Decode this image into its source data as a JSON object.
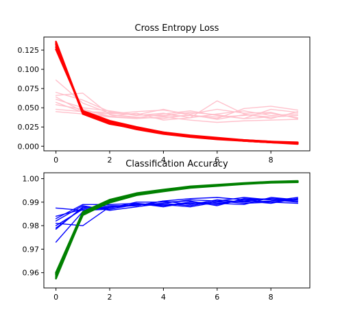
{
  "colors": {
    "train_loss": "#ff0000",
    "val_loss": "#ffc0cb",
    "train_acc": "#008000",
    "val_acc": "#0000ff"
  },
  "chart_data": [
    {
      "type": "line",
      "title": "Cross Entropy Loss",
      "xlabel": "",
      "ylabel": "",
      "xlim": [
        -0.45,
        9.45
      ],
      "ylim": [
        -0.006,
        0.142
      ],
      "xticks": [
        0,
        2,
        4,
        6,
        8
      ],
      "xtick_labels": [
        "0",
        "2",
        "4",
        "6",
        "8"
      ],
      "yticks": [
        0.0,
        0.025,
        0.05,
        0.075,
        0.1,
        0.125
      ],
      "ytick_labels": [
        "0.000",
        "0.025",
        "0.050",
        "0.075",
        "0.100",
        "0.125"
      ],
      "grid": false,
      "x": [
        0,
        1,
        2,
        3,
        4,
        5,
        6,
        7,
        8,
        9
      ],
      "series": [
        {
          "role": "train",
          "color": "#ff0000",
          "width": 2.6,
          "values": [
            0.136,
            0.043,
            0.031,
            0.023,
            0.017,
            0.013,
            0.01,
            0.007,
            0.005,
            0.004
          ]
        },
        {
          "role": "train",
          "color": "#ff0000",
          "width": 2.6,
          "values": [
            0.132,
            0.045,
            0.032,
            0.024,
            0.018,
            0.013,
            0.01,
            0.008,
            0.006,
            0.005
          ]
        },
        {
          "role": "train",
          "color": "#ff0000",
          "width": 2.6,
          "values": [
            0.129,
            0.044,
            0.03,
            0.022,
            0.016,
            0.012,
            0.009,
            0.007,
            0.005,
            0.003
          ]
        },
        {
          "role": "train",
          "color": "#ff0000",
          "width": 2.6,
          "values": [
            0.126,
            0.046,
            0.033,
            0.025,
            0.018,
            0.014,
            0.011,
            0.008,
            0.006,
            0.004
          ]
        },
        {
          "role": "train",
          "color": "#ff0000",
          "width": 2.6,
          "values": [
            0.134,
            0.042,
            0.029,
            0.023,
            0.017,
            0.013,
            0.01,
            0.007,
            0.005,
            0.004
          ]
        },
        {
          "role": "val",
          "color": "#ffc0cb",
          "width": 1.4,
          "values": [
            0.086,
            0.056,
            0.043,
            0.041,
            0.04,
            0.044,
            0.041,
            0.036,
            0.038,
            0.04
          ]
        },
        {
          "role": "val",
          "color": "#ffc0cb",
          "width": 1.4,
          "values": [
            0.07,
            0.06,
            0.045,
            0.04,
            0.043,
            0.037,
            0.059,
            0.042,
            0.036,
            0.045
          ]
        },
        {
          "role": "val",
          "color": "#ffc0cb",
          "width": 1.4,
          "values": [
            0.066,
            0.069,
            0.041,
            0.038,
            0.036,
            0.041,
            0.035,
            0.041,
            0.038,
            0.04
          ]
        },
        {
          "role": "val",
          "color": "#ffc0cb",
          "width": 1.4,
          "values": [
            0.061,
            0.05,
            0.046,
            0.041,
            0.048,
            0.04,
            0.038,
            0.04,
            0.043,
            0.037
          ]
        },
        {
          "role": "val",
          "color": "#ffc0cb",
          "width": 1.4,
          "values": [
            0.057,
            0.044,
            0.039,
            0.043,
            0.034,
            0.037,
            0.042,
            0.046,
            0.04,
            0.042
          ]
        },
        {
          "role": "val",
          "color": "#ffc0cb",
          "width": 1.4,
          "values": [
            0.054,
            0.048,
            0.039,
            0.037,
            0.042,
            0.046,
            0.04,
            0.036,
            0.048,
            0.044
          ]
        },
        {
          "role": "val",
          "color": "#ffc0cb",
          "width": 1.4,
          "values": [
            0.048,
            0.045,
            0.044,
            0.041,
            0.039,
            0.04,
            0.036,
            0.049,
            0.052,
            0.047
          ]
        },
        {
          "role": "val",
          "color": "#ffc0cb",
          "width": 1.4,
          "values": [
            0.045,
            0.042,
            0.038,
            0.036,
            0.038,
            0.034,
            0.031,
            0.033,
            0.034,
            0.035
          ]
        },
        {
          "role": "val",
          "color": "#ffc0cb",
          "width": 1.4,
          "values": [
            0.064,
            0.045,
            0.042,
            0.045,
            0.047,
            0.042,
            0.048,
            0.043,
            0.044,
            0.036
          ]
        }
      ]
    },
    {
      "type": "line",
      "title": "Classification Accuracy",
      "xlabel": "",
      "ylabel": "",
      "xlim": [
        -0.45,
        9.45
      ],
      "ylim": [
        0.9535,
        1.0025
      ],
      "xticks": [
        0,
        2,
        4,
        6,
        8
      ],
      "xtick_labels": [
        "0",
        "2",
        "4",
        "6",
        "8"
      ],
      "yticks": [
        0.96,
        0.97,
        0.98,
        0.99,
        1.0
      ],
      "ytick_labels": [
        "0.96",
        "0.97",
        "0.98",
        "0.99",
        "1.00"
      ],
      "grid": false,
      "x": [
        0,
        1,
        2,
        3,
        4,
        5,
        6,
        7,
        8,
        9
      ],
      "series": [
        {
          "role": "train",
          "color": "#008000",
          "width": 2.6,
          "values": [
            0.9575,
            0.985,
            0.9905,
            0.9935,
            0.995,
            0.9965,
            0.9972,
            0.998,
            0.9985,
            0.9988
          ]
        },
        {
          "role": "train",
          "color": "#008000",
          "width": 2.6,
          "values": [
            0.959,
            0.9845,
            0.99,
            0.9932,
            0.9948,
            0.9963,
            0.997,
            0.9978,
            0.9984,
            0.9986
          ]
        },
        {
          "role": "train",
          "color": "#008000",
          "width": 2.6,
          "values": [
            0.96,
            0.9858,
            0.991,
            0.9938,
            0.9953,
            0.9967,
            0.9974,
            0.9981,
            0.9987,
            0.999
          ]
        },
        {
          "role": "train",
          "color": "#008000",
          "width": 2.6,
          "values": [
            0.9582,
            0.9852,
            0.9898,
            0.993,
            0.9946,
            0.9961,
            0.9969,
            0.9977,
            0.9983,
            0.9985
          ]
        },
        {
          "role": "train",
          "color": "#008000",
          "width": 2.6,
          "values": [
            0.9595,
            0.9855,
            0.9903,
            0.9934,
            0.9951,
            0.9964,
            0.9973,
            0.9979,
            0.9986,
            0.9989
          ]
        },
        {
          "role": "val",
          "color": "#0000ff",
          "width": 1.4,
          "values": [
            0.9875,
            0.9865,
            0.987,
            0.989,
            0.9885,
            0.9895,
            0.989,
            0.991,
            0.9915,
            0.9905
          ]
        },
        {
          "role": "val",
          "color": "#0000ff",
          "width": 1.4,
          "values": [
            0.984,
            0.987,
            0.988,
            0.9885,
            0.9905,
            0.9915,
            0.992,
            0.991,
            0.99,
            0.9915
          ]
        },
        {
          "role": "val",
          "color": "#0000ff",
          "width": 1.4,
          "values": [
            0.983,
            0.989,
            0.989,
            0.9895,
            0.988,
            0.99,
            0.9895,
            0.989,
            0.992,
            0.991
          ]
        },
        {
          "role": "val",
          "color": "#0000ff",
          "width": 1.4,
          "values": [
            0.982,
            0.9885,
            0.9865,
            0.988,
            0.9895,
            0.991,
            0.9905,
            0.992,
            0.991,
            0.9905
          ]
        },
        {
          "role": "val",
          "color": "#0000ff",
          "width": 1.4,
          "values": [
            0.981,
            0.98,
            0.988,
            0.989,
            0.989,
            0.988,
            0.99,
            0.9905,
            0.9895,
            0.9915
          ]
        },
        {
          "role": "val",
          "color": "#0000ff",
          "width": 1.4,
          "values": [
            0.98,
            0.987,
            0.9875,
            0.99,
            0.99,
            0.9905,
            0.9885,
            0.9915,
            0.991,
            0.99
          ]
        },
        {
          "role": "val",
          "color": "#0000ff",
          "width": 1.4,
          "values": [
            0.979,
            0.9875,
            0.9885,
            0.9885,
            0.9905,
            0.989,
            0.991,
            0.99,
            0.9905,
            0.992
          ]
        },
        {
          "role": "val",
          "color": "#0000ff",
          "width": 1.4,
          "values": [
            0.9785,
            0.988,
            0.987,
            0.9895,
            0.9885,
            0.99,
            0.9895,
            0.9905,
            0.9915,
            0.991
          ]
        },
        {
          "role": "val",
          "color": "#0000ff",
          "width": 1.4,
          "values": [
            0.973,
            0.986,
            0.988,
            0.989,
            0.9895,
            0.9885,
            0.9905,
            0.9895,
            0.99,
            0.9895
          ]
        }
      ]
    }
  ]
}
